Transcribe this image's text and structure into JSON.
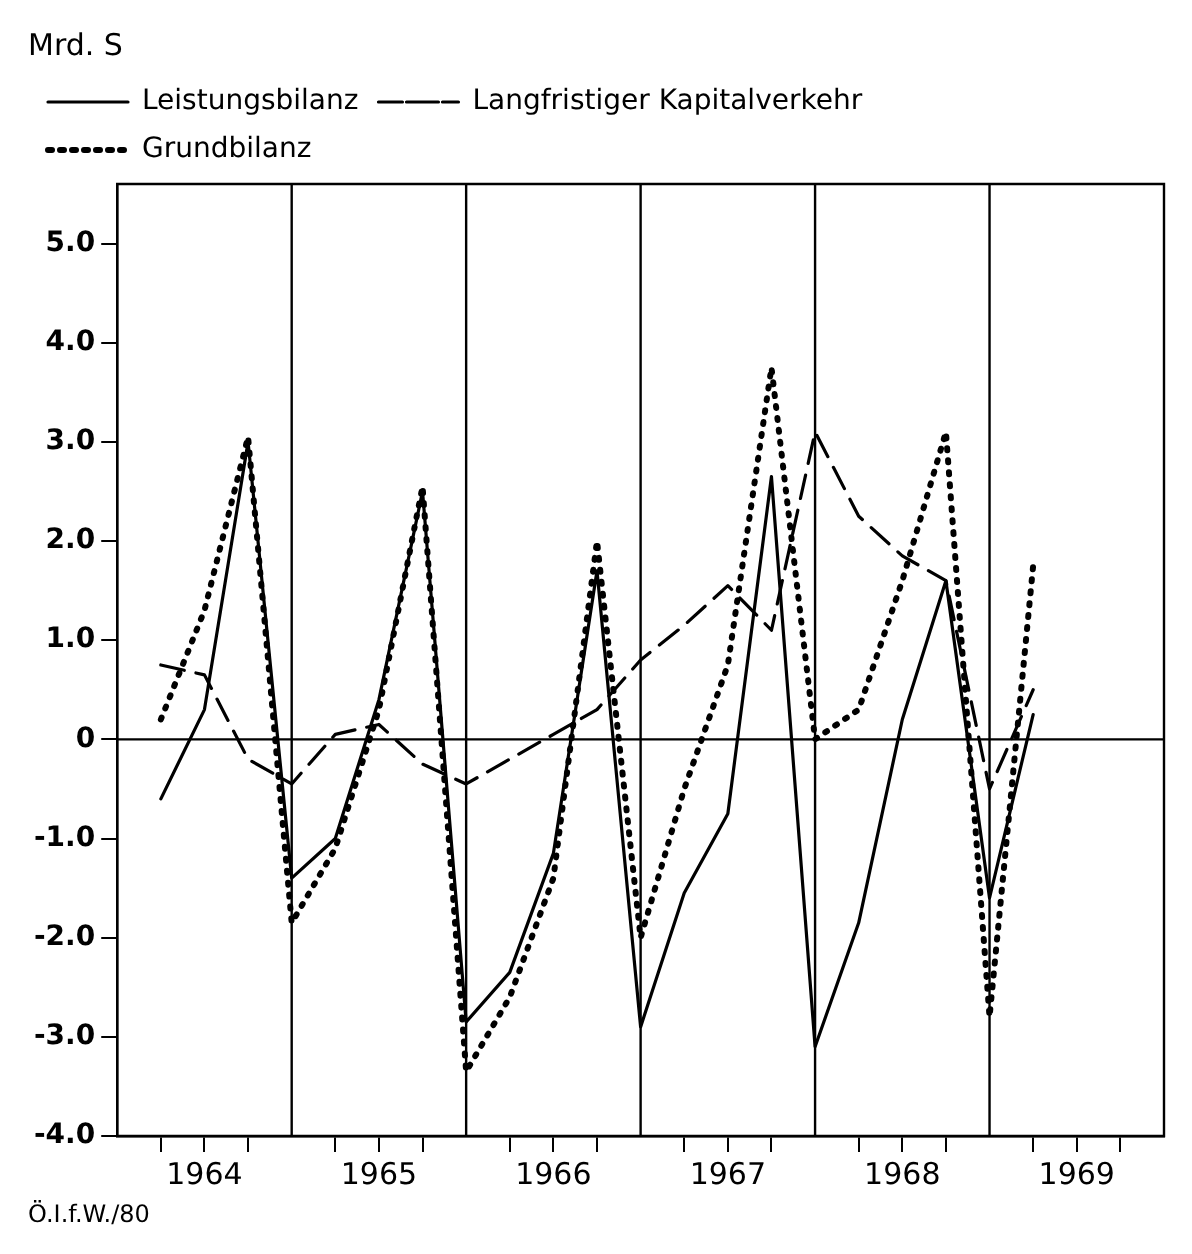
{
  "chart_data": {
    "type": "line",
    "ylabel": "Mrd. S",
    "annotations": [
      "Ö.I.f.W./80"
    ],
    "x": [
      1964.25,
      1964.5,
      1964.75,
      1965.0,
      1965.25,
      1965.5,
      1965.75,
      1966.0,
      1966.25,
      1966.5,
      1966.75,
      1967.0,
      1967.25,
      1967.5,
      1967.75,
      1968.0,
      1968.25,
      1968.5,
      1968.75,
      1969.0,
      1969.25
    ],
    "series": [
      {
        "name": "Leistungsbilanz",
        "color": "#000000",
        "line_style": "solid",
        "values": [
          -0.6,
          0.3,
          3.0,
          -1.4,
          -1.0,
          0.4,
          2.5,
          -2.85,
          -2.35,
          -1.15,
          1.7,
          -2.9,
          -1.55,
          -0.75,
          2.65,
          -3.1,
          -1.85,
          0.2,
          1.6,
          -1.6,
          0.25
        ]
      },
      {
        "name": "Langfristiger Kapitalverkehr",
        "color": "#000000",
        "line_style": "dashed",
        "values": [
          0.75,
          0.65,
          -0.2,
          -0.45,
          0.05,
          0.15,
          -0.25,
          -0.45,
          -0.2,
          0.05,
          0.3,
          0.8,
          1.15,
          1.55,
          1.1,
          3.1,
          2.25,
          1.85,
          1.6,
          -0.5,
          0.5
        ]
      },
      {
        "name": "Grundbilanz",
        "color": "#000000",
        "line_style": "dotted",
        "values": [
          0.2,
          1.3,
          3.05,
          -1.85,
          -1.1,
          0.3,
          2.55,
          -3.35,
          -2.6,
          -1.4,
          2.0,
          -2.0,
          -0.5,
          0.75,
          3.75,
          0.0,
          0.3,
          1.6,
          3.1,
          -2.8,
          1.75
        ]
      }
    ],
    "xlim": [
      1964,
      1970
    ],
    "xticks": [
      {
        "value": 1964.25,
        "label": null
      },
      {
        "value": 1964.5,
        "label": "1964"
      },
      {
        "value": 1964.75,
        "label": null
      },
      {
        "value": 1965.25,
        "label": null
      },
      {
        "value": 1965.5,
        "label": "1965"
      },
      {
        "value": 1965.75,
        "label": null
      },
      {
        "value": 1966.25,
        "label": null
      },
      {
        "value": 1966.5,
        "label": "1966"
      },
      {
        "value": 1966.75,
        "label": null
      },
      {
        "value": 1967.25,
        "label": null
      },
      {
        "value": 1967.5,
        "label": "1967"
      },
      {
        "value": 1967.75,
        "label": null
      },
      {
        "value": 1968.25,
        "label": null
      },
      {
        "value": 1968.5,
        "label": "1968"
      },
      {
        "value": 1968.75,
        "label": null
      },
      {
        "value": 1969.25,
        "label": null
      },
      {
        "value": 1969.5,
        "label": "1969"
      },
      {
        "value": 1969.75,
        "label": null
      }
    ],
    "ylim": [
      -4,
      5.6
    ],
    "yticks": [
      {
        "value": -4,
        "label": "-4.0"
      },
      {
        "value": -3,
        "label": "-3.0"
      },
      {
        "value": -2,
        "label": "-2.0"
      },
      {
        "value": -1,
        "label": "-1.0"
      },
      0,
      {
        "value": 1,
        "label": "1.0"
      },
      {
        "value": 2,
        "label": "2.0"
      },
      {
        "value": 3,
        "label": "3.0"
      },
      {
        "value": 4,
        "label": "4.0"
      },
      {
        "value": 5,
        "label": "5.0"
      }
    ],
    "ref_lines": [
      {
        "axis": "y",
        "value": 0
      },
      {
        "axis": "x",
        "value": 1965
      },
      {
        "axis": "x",
        "value": 1966
      },
      {
        "axis": "x",
        "value": 1967
      },
      {
        "axis": "x",
        "value": 1968
      },
      {
        "axis": "x",
        "value": 1969
      }
    ],
    "grid": false,
    "legend": "top left",
    "marker": "none"
  }
}
